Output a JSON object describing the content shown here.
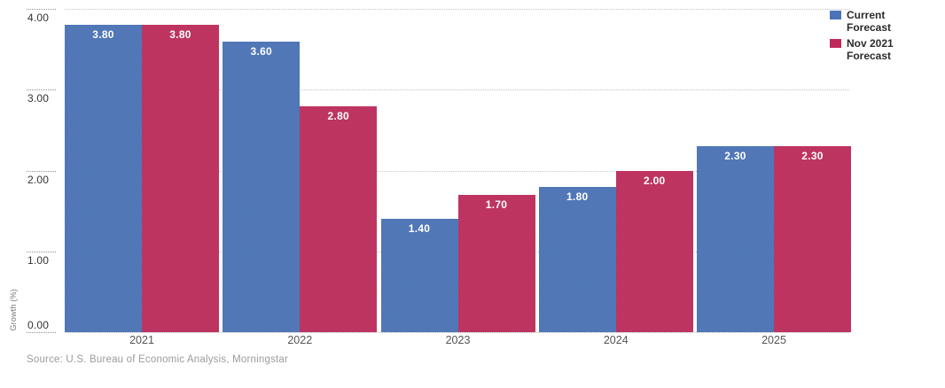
{
  "chart_data": {
    "type": "bar",
    "categories": [
      "2021",
      "2022",
      "2023",
      "2024",
      "2025"
    ],
    "series": [
      {
        "name": "Current Forecast",
        "color": "#4a73b8",
        "values": [
          3.8,
          3.6,
          1.4,
          1.8,
          2.3
        ]
      },
      {
        "name": "Nov 2021 Forecast",
        "color": "#c02a5a",
        "values": [
          3.8,
          2.8,
          1.7,
          2.0,
          2.3
        ]
      }
    ],
    "title": "",
    "xlabel": "",
    "ylabel": "Growth (%)",
    "ylim": [
      0,
      4
    ],
    "yticks": [
      {
        "value": 0,
        "label": "0.00"
      },
      {
        "value": 1,
        "label": "1.00"
      },
      {
        "value": 2,
        "label": "2.00"
      },
      {
        "value": 3,
        "label": "3.00"
      },
      {
        "value": 4,
        "label": "4.00"
      }
    ],
    "grid": "horizontal-dotted",
    "legend_position": "top-right",
    "value_labels": "inside-top, white, 2 decimals"
  },
  "legend": {
    "items": [
      {
        "label": "Current Forecast",
        "color": "#4a73b8"
      },
      {
        "label": "Nov 2021 Forecast",
        "color": "#c02a5a"
      }
    ]
  },
  "axes": {
    "y_title": "Growth (%)"
  },
  "footer": {
    "source": "Source: U.S. Bureau of Economic Analysis, Morningstar"
  }
}
